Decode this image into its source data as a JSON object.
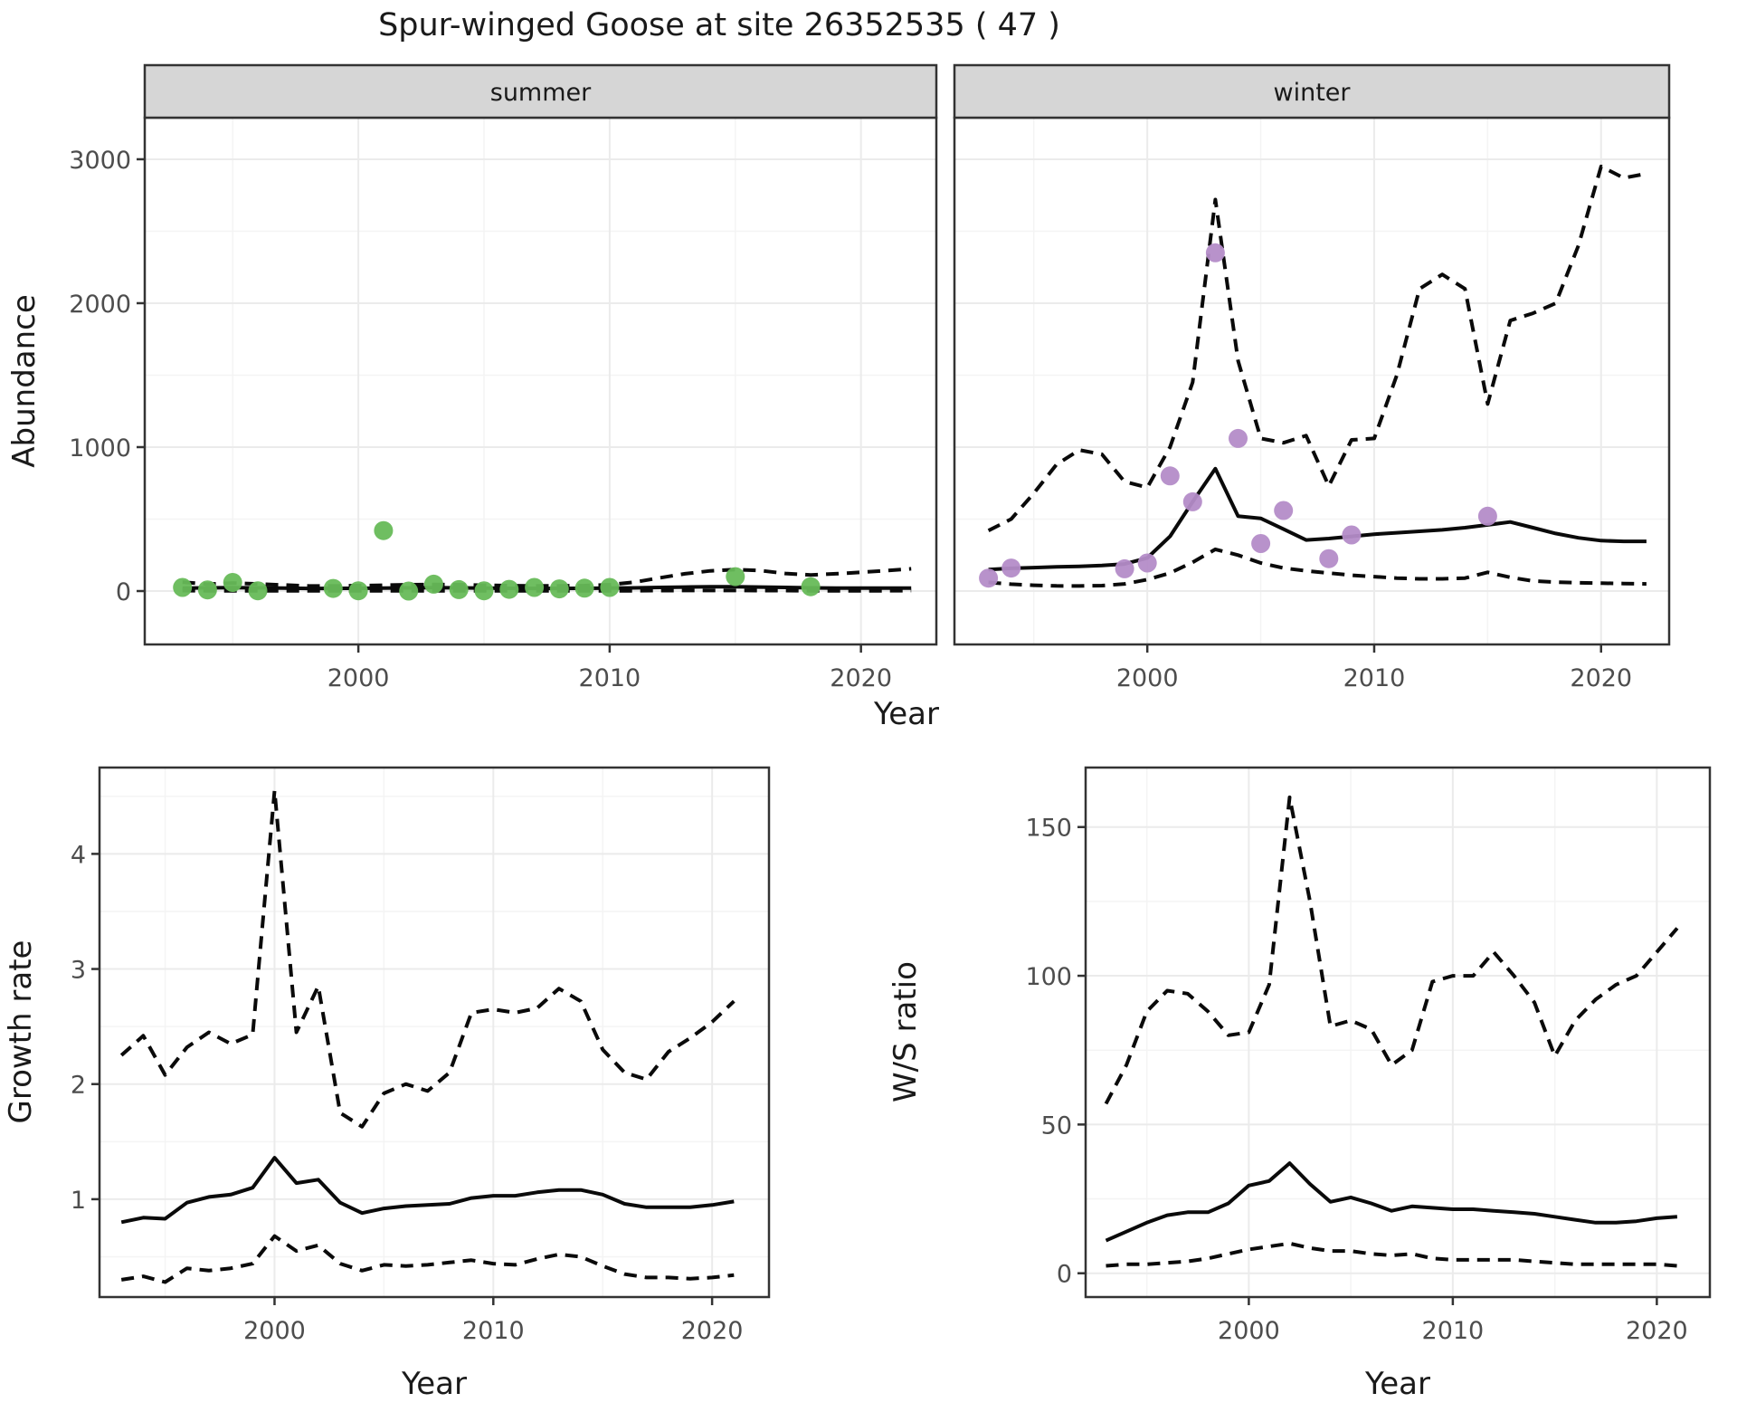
{
  "title": "Spur-winged Goose at site 26352535 ( 47 )",
  "colors": {
    "summer_point": "#67ba58",
    "winter_point": "#b48cc8",
    "strip_bg": "#d6d6d6",
    "grid_major": "#ebebeb",
    "grid_minor": "#f4f4f4",
    "border": "#333333",
    "tick_text": "#4d4d4d",
    "line": "#0a0a0a",
    "title_text": "#1a1a1a"
  },
  "chart_data": {
    "type": "line",
    "title": "Spur-winged Goose at site 26352535 ( 47 )",
    "legend": "none",
    "grid": "on",
    "panels": [
      {
        "id": "abundance-summer",
        "strip_label": "summer",
        "ylabel": "Abundance",
        "xlabel": "Year",
        "xlim": [
          1991.5,
          2023
        ],
        "ylim": [
          -371,
          3289
        ],
        "xticks": [
          2000,
          2010,
          2020
        ],
        "yticks": [
          0,
          1000,
          2000,
          3000
        ],
        "xminor": [
          1995,
          2005,
          2015
        ],
        "yminor": [
          500,
          1500,
          2500
        ],
        "years": [
          1993,
          1994,
          1995,
          1996,
          1997,
          1998,
          1999,
          2000,
          2001,
          2002,
          2003,
          2004,
          2005,
          2006,
          2007,
          2008,
          2009,
          2010,
          2011,
          2012,
          2013,
          2014,
          2015,
          2016,
          2017,
          2018,
          2019,
          2020,
          2021,
          2022
        ],
        "fit": [
          20,
          22,
          24,
          22,
          20,
          18,
          18,
          19,
          20,
          22,
          23,
          22,
          20,
          19,
          18,
          18,
          19,
          20,
          22,
          25,
          28,
          30,
          30,
          28,
          25,
          22,
          21,
          20,
          20,
          20
        ],
        "upper": [
          62,
          48,
          56,
          50,
          42,
          36,
          35,
          38,
          40,
          44,
          46,
          44,
          40,
          38,
          36,
          36,
          38,
          44,
          62,
          92,
          120,
          140,
          150,
          142,
          122,
          112,
          120,
          130,
          142,
          155
        ],
        "lower": [
          3,
          2,
          2,
          1,
          1,
          1,
          1,
          1,
          1,
          1,
          1,
          1,
          1,
          1,
          1,
          1,
          1,
          1,
          2,
          3,
          4,
          4,
          4,
          3,
          3,
          2,
          2,
          2,
          2,
          3
        ],
        "point_color_key": "summer_point",
        "points": [
          [
            1993,
            25
          ],
          [
            1994,
            8
          ],
          [
            1995,
            60
          ],
          [
            1996,
            2
          ],
          [
            1999,
            18
          ],
          [
            2000,
            2
          ],
          [
            2001,
            420
          ],
          [
            2002,
            0
          ],
          [
            2003,
            48
          ],
          [
            2004,
            10
          ],
          [
            2005,
            2
          ],
          [
            2006,
            12
          ],
          [
            2007,
            25
          ],
          [
            2008,
            15
          ],
          [
            2009,
            20
          ],
          [
            2010,
            25
          ],
          [
            2015,
            100
          ],
          [
            2018,
            30
          ]
        ]
      },
      {
        "id": "abundance-winter",
        "strip_label": "winter",
        "ylabel": "",
        "xlabel": "Year",
        "xlim": [
          1991.5,
          2023
        ],
        "ylim": [
          -371,
          3289
        ],
        "xticks": [
          2000,
          2010,
          2020
        ],
        "yticks": [
          0,
          1000,
          2000,
          3000
        ],
        "xminor": [
          1995,
          2005,
          2015
        ],
        "yminor": [
          500,
          1500,
          2500
        ],
        "years": [
          1993,
          1994,
          1995,
          1996,
          1997,
          1998,
          1999,
          2000,
          2001,
          2002,
          2003,
          2004,
          2005,
          2006,
          2007,
          2008,
          2009,
          2010,
          2011,
          2012,
          2013,
          2014,
          2015,
          2016,
          2017,
          2018,
          2019,
          2020,
          2021,
          2022
        ],
        "fit": [
          150,
          158,
          163,
          168,
          172,
          178,
          188,
          230,
          380,
          620,
          850,
          520,
          505,
          430,
          355,
          365,
          380,
          395,
          405,
          415,
          425,
          440,
          460,
          480,
          440,
          400,
          370,
          350,
          345,
          345
        ],
        "upper": [
          420,
          500,
          680,
          880,
          980,
          950,
          760,
          720,
          1000,
          1450,
          2720,
          1600,
          1060,
          1030,
          1080,
          730,
          1050,
          1060,
          1500,
          2100,
          2200,
          2100,
          1300,
          1880,
          1930,
          2000,
          2400,
          2950,
          2870,
          2900
        ],
        "lower": [
          60,
          48,
          40,
          36,
          35,
          38,
          50,
          80,
          125,
          200,
          290,
          250,
          195,
          160,
          140,
          125,
          110,
          100,
          90,
          85,
          85,
          90,
          130,
          95,
          70,
          62,
          58,
          55,
          52,
          50
        ],
        "point_color_key": "winter_point",
        "points": [
          [
            1993,
            90
          ],
          [
            1994,
            160
          ],
          [
            1999,
            155
          ],
          [
            2000,
            195
          ],
          [
            2001,
            800
          ],
          [
            2002,
            620
          ],
          [
            2003,
            2350
          ],
          [
            2004,
            1060
          ],
          [
            2005,
            330
          ],
          [
            2006,
            560
          ],
          [
            2008,
            225
          ],
          [
            2009,
            390
          ],
          [
            2015,
            520
          ]
        ]
      },
      {
        "id": "growth-rate",
        "strip_label": "",
        "ylabel": "Growth rate",
        "xlabel": "Year",
        "xlim": [
          1992,
          2022.6
        ],
        "ylim": [
          0.15,
          4.75
        ],
        "xticks": [
          2000,
          2010,
          2020
        ],
        "yticks": [
          1,
          2,
          3,
          4
        ],
        "xminor": [
          1995,
          2005,
          2015
        ],
        "yminor": [
          0.5,
          1.5,
          2.5,
          3.5,
          4.5
        ],
        "years": [
          1993,
          1994,
          1995,
          1996,
          1997,
          1998,
          1999,
          2000,
          2001,
          2002,
          2003,
          2004,
          2005,
          2006,
          2007,
          2008,
          2009,
          2010,
          2011,
          2012,
          2013,
          2014,
          2015,
          2016,
          2017,
          2018,
          2019,
          2020,
          2021
        ],
        "fit": [
          0.8,
          0.84,
          0.83,
          0.97,
          1.02,
          1.04,
          1.1,
          1.36,
          1.14,
          1.17,
          0.97,
          0.88,
          0.92,
          0.94,
          0.95,
          0.96,
          1.01,
          1.03,
          1.03,
          1.06,
          1.08,
          1.08,
          1.04,
          0.96,
          0.93,
          0.93,
          0.93,
          0.95,
          0.98
        ],
        "upper": [
          2.25,
          2.42,
          2.08,
          2.32,
          2.45,
          2.35,
          2.43,
          4.55,
          2.45,
          2.85,
          1.75,
          1.63,
          1.92,
          2.0,
          1.94,
          2.1,
          2.62,
          2.65,
          2.62,
          2.66,
          2.83,
          2.72,
          2.3,
          2.1,
          2.04,
          2.28,
          2.4,
          2.54,
          2.72
        ],
        "lower": [
          0.3,
          0.33,
          0.28,
          0.4,
          0.38,
          0.4,
          0.44,
          0.68,
          0.55,
          0.6,
          0.44,
          0.38,
          0.43,
          0.42,
          0.43,
          0.45,
          0.47,
          0.44,
          0.43,
          0.48,
          0.52,
          0.5,
          0.42,
          0.35,
          0.32,
          0.32,
          0.31,
          0.32,
          0.34
        ],
        "point_color_key": null,
        "points": []
      },
      {
        "id": "ws-ratio",
        "strip_label": "",
        "ylabel": "W/S ratio",
        "xlabel": "Year",
        "xlim": [
          1992,
          2022.6
        ],
        "ylim": [
          -8,
          170
        ],
        "xticks": [
          2000,
          2010,
          2020
        ],
        "yticks": [
          0,
          50,
          100,
          150
        ],
        "xminor": [
          1995,
          2005,
          2015
        ],
        "yminor": [
          25,
          75,
          125
        ],
        "years": [
          1993,
          1994,
          1995,
          1996,
          1997,
          1998,
          1999,
          2000,
          2001,
          2002,
          2003,
          2004,
          2005,
          2006,
          2007,
          2008,
          2009,
          2010,
          2011,
          2012,
          2013,
          2014,
          2015,
          2016,
          2017,
          2018,
          2019,
          2020,
          2021
        ],
        "fit": [
          11,
          14,
          17,
          19.5,
          20.5,
          20.5,
          23.5,
          29.5,
          31,
          37,
          30,
          24,
          25.5,
          23.5,
          21,
          22.5,
          22,
          21.5,
          21.5,
          21,
          20.5,
          20,
          19,
          18,
          17,
          17,
          17.5,
          18.5,
          19
        ],
        "upper": [
          57,
          70,
          88,
          95,
          94,
          88,
          80,
          81,
          97,
          160,
          125,
          83,
          85,
          82,
          70,
          75,
          98,
          100,
          100,
          108,
          100,
          91,
          73,
          85,
          92,
          97,
          100,
          108,
          116
        ],
        "lower": [
          2.5,
          3,
          3,
          3.5,
          4,
          5,
          6.5,
          8,
          9,
          10,
          8.5,
          7.5,
          7.5,
          6.5,
          6,
          6.5,
          5,
          4.5,
          4.5,
          4.5,
          4.5,
          4,
          3.5,
          3,
          3,
          3,
          3,
          3,
          2.5
        ],
        "point_color_key": null,
        "points": []
      }
    ]
  }
}
